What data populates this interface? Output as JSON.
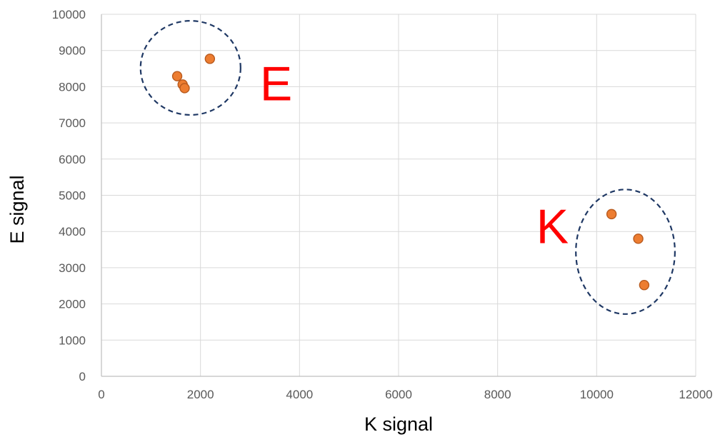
{
  "chart_data": {
    "type": "scatter",
    "xlabel": "K signal",
    "ylabel": "E signal",
    "xlim": [
      0,
      12000
    ],
    "ylim": [
      0,
      10000
    ],
    "x_ticks": [
      "0",
      "2000",
      "4000",
      "6000",
      "8000",
      "10000",
      "12000"
    ],
    "y_ticks": [
      "0",
      "1000",
      "2000",
      "3000",
      "4000",
      "5000",
      "6000",
      "7000",
      "8000",
      "9000",
      "10000"
    ],
    "grid": true,
    "series": [
      {
        "points": [
          {
            "x": 1530,
            "y": 8290
          },
          {
            "x": 1640,
            "y": 8060
          },
          {
            "x": 1680,
            "y": 7960
          },
          {
            "x": 2190,
            "y": 8770
          },
          {
            "x": 10300,
            "y": 4480
          },
          {
            "x": 10840,
            "y": 3800
          },
          {
            "x": 10960,
            "y": 2520
          }
        ]
      }
    ],
    "annotations": [
      {
        "text": "E",
        "x": 3200,
        "y": 8100
      },
      {
        "text": "K",
        "x": 8780,
        "y": 4150
      }
    ],
    "clusters": [
      {
        "label": "E",
        "center": [
          1800,
          8520
        ],
        "rx": 1010,
        "ry": 1300
      },
      {
        "label": "K",
        "center": [
          10580,
          3440
        ],
        "rx": 1000,
        "ry": 1720
      }
    ]
  },
  "colors": {
    "marker_fill": "#ED7D31",
    "marker_stroke": "#B85A1E",
    "cluster_outline": "#1F3864",
    "annotation_text": "#FF0000",
    "grid": "#D9D9D9"
  }
}
